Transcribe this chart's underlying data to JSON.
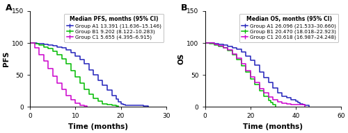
{
  "panel_A": {
    "title": "A",
    "legend_title": "Median PFS, months (95% CI)",
    "xlabel": "Time (months)",
    "ylabel": "PFS",
    "xlim": [
      0,
      30
    ],
    "ylim": [
      0,
      150
    ],
    "yticks": [
      0,
      50,
      100,
      150
    ],
    "xticks": [
      0,
      10,
      20,
      30
    ],
    "groups": [
      {
        "label": "Group A1 13.391 (11.636–15.146)",
        "color": "#2222bb",
        "x": [
          0,
          0.5,
          1.5,
          3,
          4,
          5,
          6,
          7,
          8,
          9,
          10,
          11,
          12,
          13,
          14,
          15,
          16,
          17,
          18,
          19,
          19.5,
          20,
          20.5,
          21,
          25,
          26
        ],
        "y": [
          100,
          100,
          99,
          98,
          97,
          96,
          94,
          92,
          89,
          85,
          80,
          74,
          67,
          58,
          50,
          42,
          34,
          26,
          18,
          12,
          8,
          5,
          3,
          2,
          1,
          0
        ]
      },
      {
        "label": "Group B1 9.202 (8.122–10.283)",
        "color": "#00bb00",
        "x": [
          0,
          1,
          2,
          3,
          4,
          5,
          6,
          7,
          8,
          9,
          10,
          11,
          12,
          13,
          14,
          15,
          16,
          17,
          18,
          19,
          19.5
        ],
        "y": [
          100,
          99,
          97,
          94,
          91,
          87,
          82,
          75,
          67,
          57,
          47,
          37,
          27,
          20,
          13,
          9,
          5,
          3,
          2,
          1,
          0
        ]
      },
      {
        "label": "Group C1 5.655 (4.395–6.915)",
        "color": "#cc00cc",
        "x": [
          0,
          1,
          2,
          3,
          4,
          5,
          6,
          7,
          8,
          9,
          10,
          11,
          12,
          12.5
        ],
        "y": [
          100,
          92,
          82,
          72,
          60,
          48,
          37,
          27,
          18,
          11,
          6,
          2,
          1,
          0
        ]
      }
    ]
  },
  "panel_B": {
    "title": "B",
    "legend_title": "Median OS, months (95% CI)",
    "xlabel": "Time (months)",
    "ylabel": "OS",
    "xlim": [
      0,
      60
    ],
    "ylim": [
      0,
      150
    ],
    "yticks": [
      0,
      50,
      100,
      150
    ],
    "xticks": [
      0,
      20,
      40,
      60
    ],
    "groups": [
      {
        "label": "Group A1 26.096 (21.533–30.660)",
        "color": "#2222bb",
        "x": [
          0,
          2,
          4,
          6,
          8,
          10,
          12,
          14,
          16,
          18,
          20,
          22,
          24,
          26,
          28,
          30,
          32,
          34,
          36,
          38,
          40,
          41,
          42,
          43,
          44,
          46
        ],
        "y": [
          100,
          100,
          99,
          98,
          97,
          95,
          93,
          90,
          86,
          80,
          73,
          65,
          55,
          46,
          38,
          30,
          22,
          17,
          14,
          11,
          9,
          7,
          5,
          4,
          2,
          0
        ]
      },
      {
        "label": "Group B1 20.470 (18.018–22.923)",
        "color": "#00bb00",
        "x": [
          0,
          2,
          4,
          6,
          8,
          10,
          12,
          14,
          16,
          18,
          20,
          22,
          24,
          26,
          28,
          29,
          30,
          31
        ],
        "y": [
          100,
          99,
          97,
          95,
          92,
          88,
          82,
          74,
          64,
          54,
          44,
          35,
          25,
          17,
          10,
          7,
          4,
          0
        ]
      },
      {
        "label": "Group C1 20.618 (16.987–24.248)",
        "color": "#cc00cc",
        "x": [
          0,
          2,
          4,
          6,
          8,
          10,
          12,
          14,
          16,
          18,
          20,
          22,
          24,
          26,
          28,
          30,
          32,
          34,
          36,
          38,
          40,
          42,
          43,
          44
        ],
        "y": [
          100,
          100,
          98,
          96,
          93,
          89,
          83,
          76,
          67,
          57,
          47,
          38,
          29,
          22,
          16,
          11,
          8,
          6,
          5,
          4,
          4,
          4,
          3,
          0
        ]
      }
    ]
  },
  "figure_bg": "#ffffff",
  "axes_bg": "#ffffff",
  "legend_fontsize": 5.2,
  "legend_title_fontsize": 5.5,
  "label_fontsize": 7.5,
  "tick_fontsize": 6.5,
  "title_fontsize": 9,
  "line_width": 1.1
}
